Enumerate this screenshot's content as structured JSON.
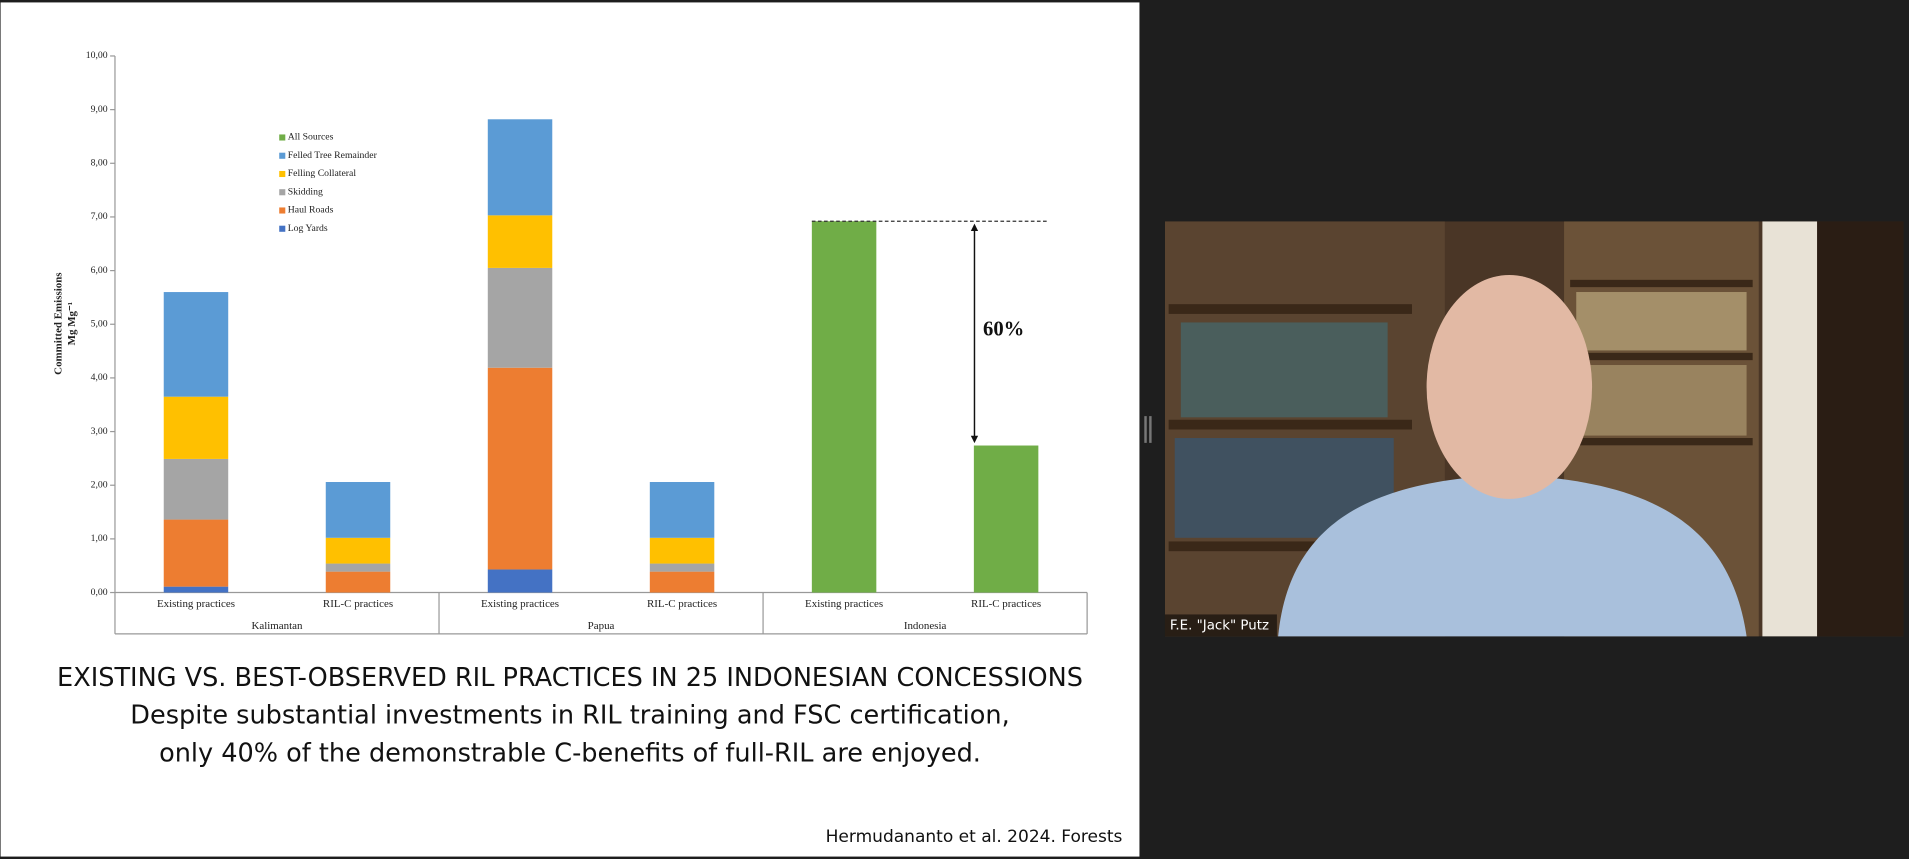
{
  "chart_data": {
    "type": "stacked_bar",
    "y_label": [
      "Committed Emissions",
      "Mg Mg⁻¹"
    ],
    "categories": [
      "Existing practices",
      "RIL-C practices",
      "Existing practices",
      "RIL-C practices",
      "Existing practices",
      "RIL-C practices"
    ],
    "group_labels": [
      "Kalimantan",
      "Papua",
      "Indonesia"
    ],
    "series": [
      {
        "name": "Log Yards",
        "color": "#4472c4",
        "values": [
          0.11,
          0,
          0.43,
          0,
          null,
          null
        ]
      },
      {
        "name": "Haul Roads",
        "color": "#ed7d31",
        "values": [
          1.25,
          0.39,
          3.76,
          0.39,
          null,
          null
        ]
      },
      {
        "name": "Skidding",
        "color": "#a5a5a5",
        "values": [
          1.13,
          0.15,
          1.86,
          0.15,
          null,
          null
        ]
      },
      {
        "name": "Felling Collateral",
        "color": "#ffc000",
        "values": [
          1.16,
          0.48,
          0.98,
          0.48,
          null,
          null
        ]
      },
      {
        "name": "Felled Tree Remainder",
        "color": "#5b9bd5",
        "values": [
          1.95,
          1.04,
          1.79,
          1.04,
          null,
          null
        ]
      },
      {
        "name": "All Sources",
        "color": "#70ad47",
        "values": [
          null,
          null,
          null,
          null,
          6.92,
          2.74
        ]
      }
    ],
    "annotation": "60%",
    "ylim": [
      0,
      10
    ],
    "yticks": [
      {
        "value": 0,
        "label": "0,00"
      },
      {
        "value": 1,
        "label": "1,00"
      },
      {
        "value": 2,
        "label": "2,00"
      },
      {
        "value": 3,
        "label": "3,00"
      },
      {
        "value": 4,
        "label": "4,00"
      },
      {
        "value": 5,
        "label": "5,00"
      },
      {
        "value": 6,
        "label": "6,00"
      },
      {
        "value": 7,
        "label": "7,00"
      },
      {
        "value": 8,
        "label": "8,00"
      },
      {
        "value": 9,
        "label": "9,00"
      },
      {
        "value": 10,
        "label": "10,00"
      }
    ],
    "grid": false
  },
  "slide": {
    "caption": [
      "EXISTING VS. BEST-OBSERVED RIL PRACTICES IN 25 INDONESIAN CONCESSIONS",
      "Despite substantial investments in RIL training and FSC certification,",
      "only 40% of the demonstrable C-benefits of full-RIL are enjoyed."
    ],
    "citation": "Hermudananto et al. 2024. Forests"
  },
  "video": {
    "participant_name": "F.E. \"Jack\" Putz"
  }
}
